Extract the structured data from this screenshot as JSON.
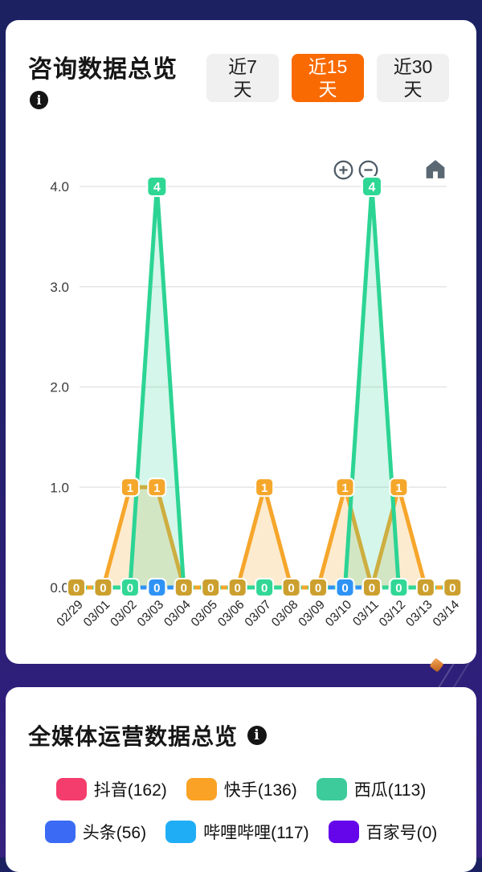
{
  "background": {
    "top_color": "#1B2161",
    "gap_color": "#2F1F7B"
  },
  "card1": {
    "title": "咨询数据总览",
    "info_glyph": "i",
    "tabs": [
      {
        "line1": "近7",
        "line2": "天",
        "active": false
      },
      {
        "line1": "近15",
        "line2": "天",
        "active": true
      },
      {
        "line1": "近30",
        "line2": "天",
        "active": false
      }
    ],
    "active_tab_color": "#FA6A02",
    "icons": {
      "info": "ⓘ",
      "zoom_in": "⊕",
      "zoom_out": "⊖",
      "home": "⌂"
    }
  },
  "chart_data": {
    "type": "line",
    "x": [
      "02/29",
      "03/01",
      "03/02",
      "03/03",
      "03/04",
      "03/05",
      "03/06",
      "03/07",
      "03/08",
      "03/09",
      "03/10",
      "03/11",
      "03/12",
      "03/13",
      "03/14"
    ],
    "ylim": [
      0,
      4
    ],
    "yticks": [
      "4.0",
      "3.0",
      "2.0",
      "1.0",
      "0.0"
    ],
    "grid": true,
    "legend_position": "none",
    "series": [
      {
        "name": "快手",
        "color": "#F6A62B",
        "fill": "rgba(246,166,43,0.22)",
        "values": [
          0,
          0,
          1,
          1,
          0,
          0,
          0,
          1,
          0,
          0,
          1,
          0,
          1,
          0,
          0
        ]
      },
      {
        "name": "西瓜",
        "color": "#2CD494",
        "fill": "rgba(44,212,148,0.20)",
        "values": [
          0,
          0,
          0,
          4,
          0,
          0,
          0,
          0,
          0,
          0,
          0,
          4,
          0,
          0,
          0
        ]
      }
    ],
    "point_badges": {
      "four": {
        "label": "4",
        "color": "#2FD794",
        "indices": [
          3,
          11
        ]
      },
      "one": {
        "label": "1",
        "color": "#F5A72B",
        "indices": [
          2,
          3,
          7,
          10,
          12
        ]
      },
      "zero": {
        "label": "0",
        "colors": [
          "#CCA02E",
          "#CCA02E",
          "#31D795",
          "#2F93F6",
          "#CCA02E",
          "#CCA02E",
          "#CCA02E",
          "#31D795",
          "#CCA02E",
          "#CCA02E",
          "#2F93F6",
          "#CCA02E",
          "#31D795",
          "#CCA02E",
          "#CCA02E"
        ]
      }
    },
    "zero_segment_colors": [
      "#F5A72B",
      "#31D795",
      "#2F93F6",
      "#2F93F6",
      "#F5A72B",
      "#F5A72B",
      "#31D795",
      "#31D795",
      "#F5A72B",
      "#2F93F6",
      "#2F93F6",
      "#31D795",
      "#31D795",
      "#F5A72B"
    ]
  },
  "card2": {
    "title": "全媒体运营数据总览",
    "info_glyph": "i",
    "legend": [
      {
        "label": "抖音(162)",
        "color": "#F43D6C"
      },
      {
        "label": "快手(136)",
        "color": "#F9A226"
      },
      {
        "label": "西瓜(113)",
        "color": "#3DCB9C"
      },
      {
        "label": "头条(56)",
        "color": "#3B6BF4"
      },
      {
        "label": "哔哩哔哩(117)",
        "color": "#1FAEF6"
      },
      {
        "label": "百家号(0)",
        "color": "#6406E9"
      }
    ]
  }
}
